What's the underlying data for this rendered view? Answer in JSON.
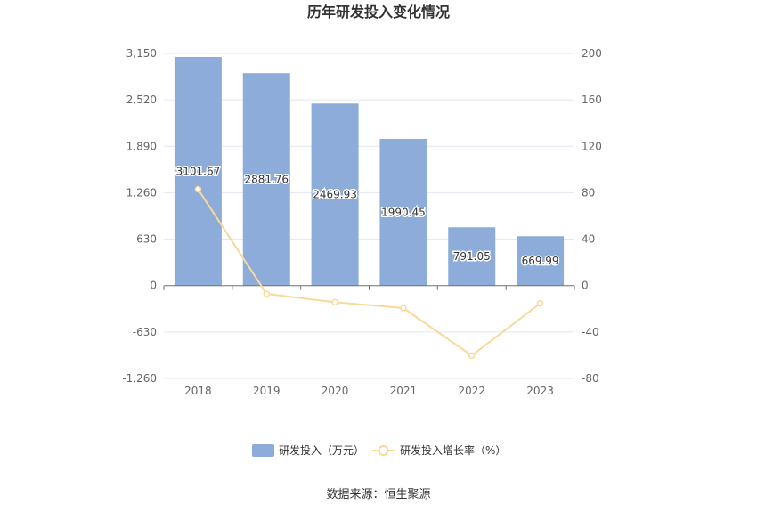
{
  "chart_data": {
    "type": "bar",
    "title": "历年研发投入变化情况",
    "categories": [
      "2018",
      "2019",
      "2020",
      "2021",
      "2022",
      "2023"
    ],
    "series": [
      {
        "name": "研发投入（万元）",
        "type": "bar",
        "axis": "left",
        "color": "#8eacd9",
        "values": [
          3101.67,
          2881.76,
          2469.93,
          1990.45,
          791.05,
          669.99
        ],
        "labels": [
          "3101.67",
          "2881.76",
          "2469.93",
          "1990.45",
          "791.05",
          "669.99"
        ]
      },
      {
        "name": "研发投入增长率（%）",
        "type": "line",
        "axis": "right",
        "color": "#f8d99a",
        "values": [
          83.0,
          -7.1,
          -14.3,
          -19.4,
          -60.3,
          -15.3
        ]
      }
    ],
    "y_left": {
      "min": -1260,
      "max": 3150,
      "ticks": [
        3150,
        2520,
        1890,
        1260,
        630,
        0,
        -630,
        -1260
      ],
      "tick_labels": [
        "3,150",
        "2,520",
        "1,890",
        "1,260",
        "630",
        "0",
        "-630",
        "-1,260"
      ]
    },
    "y_right": {
      "min": -80,
      "max": 200,
      "ticks": [
        200,
        160,
        120,
        80,
        40,
        0,
        -40,
        -80
      ],
      "tick_labels": [
        "200",
        "160",
        "120",
        "80",
        "40",
        "0",
        "-40",
        "-80"
      ]
    },
    "grid": true,
    "legend_position": "bottom",
    "source": "数据来源：恒生聚源"
  }
}
